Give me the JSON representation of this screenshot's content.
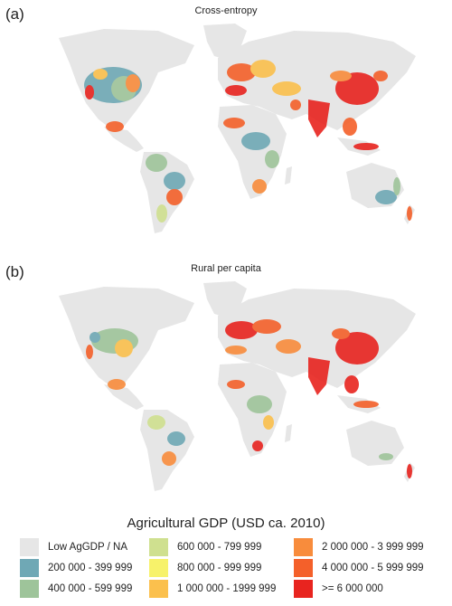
{
  "panels": [
    {
      "label": "(a)",
      "title": "Cross-entropy"
    },
    {
      "label": "(b)",
      "title": "Rural per capita"
    }
  ],
  "legend": {
    "title": "Agricultural GDP (USD ca. 2010)",
    "items": [
      {
        "label": "Low AgGDP / NA",
        "color": "#e6e6e6"
      },
      {
        "label": "200 000 - 399 999",
        "color": "#6fa8b5"
      },
      {
        "label": "400 000 - 599 999",
        "color": "#9ec49a"
      },
      {
        "label": "600 000 - 799 999",
        "color": "#cfe08f"
      },
      {
        "label": "800 000 - 999 999",
        "color": "#f7f26a"
      },
      {
        "label": "1 000 000 - 1999 999",
        "color": "#fbc04d"
      },
      {
        "label": "2 000 000 - 3 999 999",
        "color": "#f88c3c"
      },
      {
        "label": "4 000 000 - 5 999 999",
        "color": "#f4602a"
      },
      {
        "label": ">= 6 000 000",
        "color": "#e8241f"
      }
    ]
  }
}
